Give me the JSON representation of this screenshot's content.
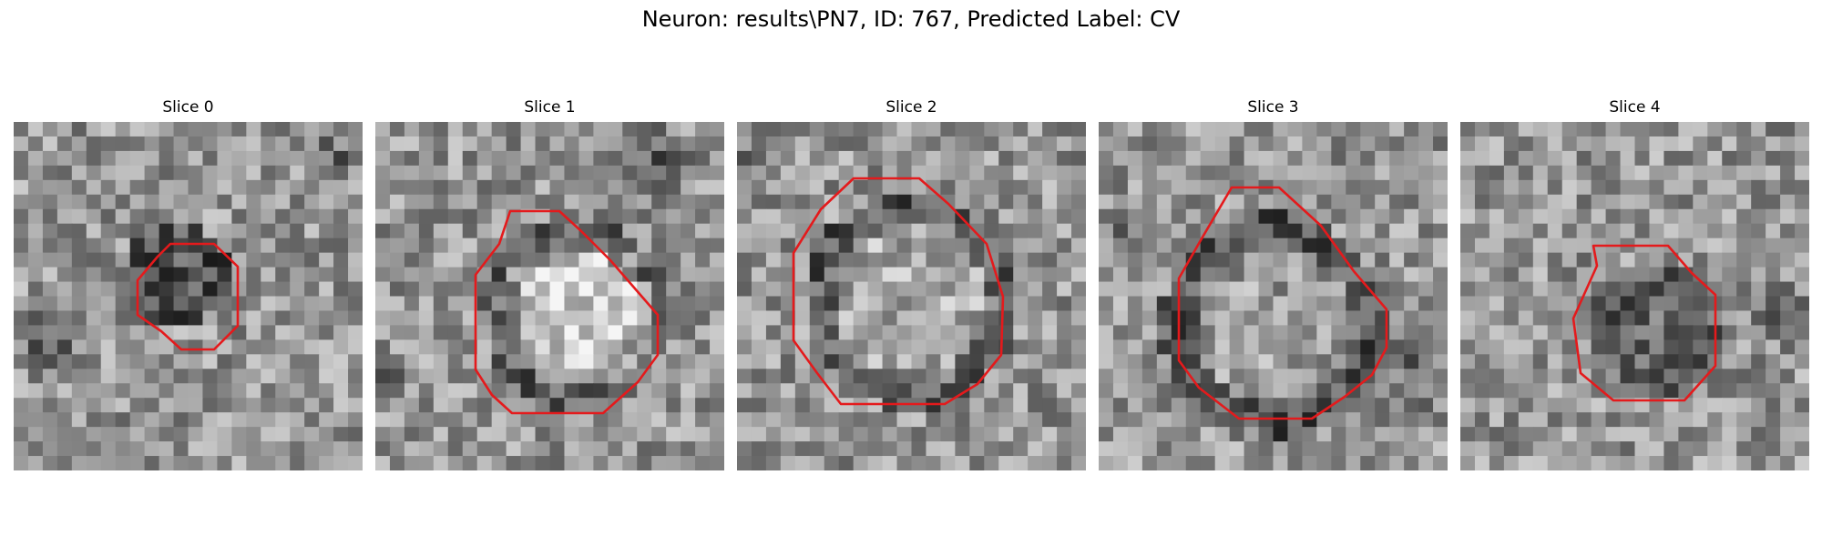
{
  "figure": {
    "title": "Neuron: results\\PN7, ID: 767, Predicted Label: CV"
  },
  "panels": [
    {
      "title": "Slice 0"
    },
    {
      "title": "Slice 1"
    },
    {
      "title": "Slice 2"
    },
    {
      "title": "Slice 3"
    },
    {
      "title": "Slice 4"
    }
  ],
  "colors": {
    "contour": "#e41a1c",
    "background": "#ffffff"
  }
}
